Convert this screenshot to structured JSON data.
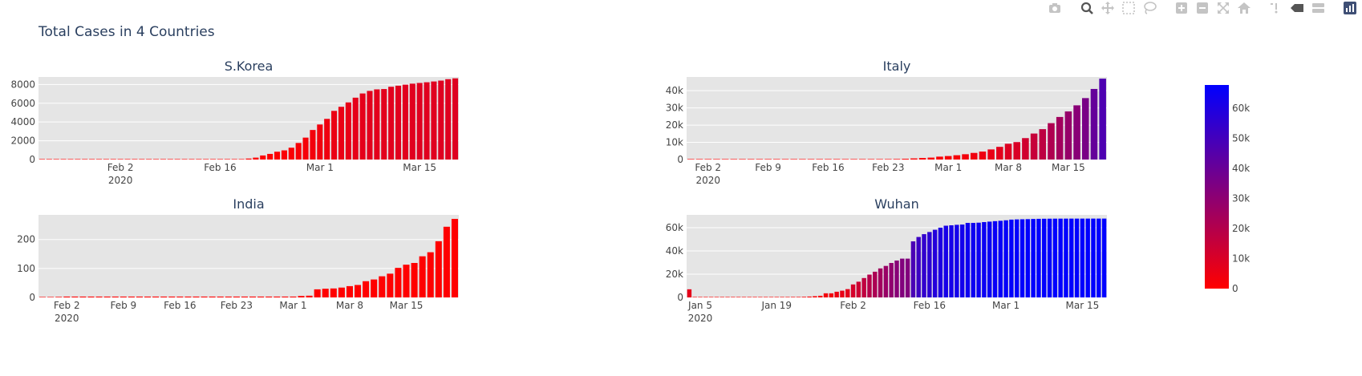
{
  "title": "Total Cases in 4 Countries",
  "modebar": {
    "buttons": [
      {
        "name": "camera-icon",
        "group": 1
      },
      {
        "name": "zoom-icon",
        "group": 2
      },
      {
        "name": "pan-icon",
        "group": 2
      },
      {
        "name": "box-select-icon",
        "group": 2
      },
      {
        "name": "lasso-select-icon",
        "group": 2
      },
      {
        "name": "zoom-in-icon",
        "group": 3
      },
      {
        "name": "zoom-out-icon",
        "group": 3
      },
      {
        "name": "autoscale-icon",
        "group": 3
      },
      {
        "name": "reset-axes-icon",
        "group": 3
      },
      {
        "name": "spike-lines-icon",
        "group": 4
      },
      {
        "name": "hover-closest-icon",
        "group": 4
      },
      {
        "name": "hover-compare-icon",
        "group": 4
      },
      {
        "name": "plotly-logo-icon",
        "group": 5
      }
    ]
  },
  "colors": {
    "plot_bg": "#e5e5e5",
    "grid": "#ffffff",
    "colorscale_low": "#ff0000",
    "colorscale_high": "#0000ff",
    "title_text": "#2a3f5f",
    "tick_text": "#444444"
  },
  "chart_data": {
    "type": "bar",
    "colorscale": {
      "min": 0,
      "max": 67800,
      "low_color": "#ff0000",
      "high_color": "#0000ff",
      "tickvals": [
        0,
        10000,
        20000,
        30000,
        40000,
        50000,
        60000
      ],
      "ticktext": [
        "0",
        "10k",
        "20k",
        "30k",
        "40k",
        "50k",
        "60k"
      ]
    },
    "subplots": [
      {
        "title": "S.Korea",
        "x_start": "2020-01-22",
        "ylim": [
          0,
          8800
        ],
        "yticks": [
          {
            "v": 0,
            "label": "0"
          },
          {
            "v": 2000,
            "label": "2000"
          },
          {
            "v": 4000,
            "label": "4000"
          },
          {
            "v": 6000,
            "label": "6000"
          },
          {
            "v": 8000,
            "label": "8000"
          }
        ],
        "xticks": [
          {
            "date": "2020-02-02",
            "label": "Feb 2",
            "sub": "2020"
          },
          {
            "date": "2020-02-16",
            "label": "Feb 16"
          },
          {
            "date": "2020-03-01",
            "label": "Mar 1"
          },
          {
            "date": "2020-03-15",
            "label": "Mar 15"
          }
        ],
        "values": [
          1,
          1,
          2,
          2,
          3,
          4,
          4,
          4,
          4,
          11,
          12,
          15,
          15,
          16,
          19,
          23,
          24,
          24,
          25,
          27,
          28,
          28,
          28,
          28,
          28,
          29,
          30,
          31,
          31,
          104,
          204,
          433,
          602,
          833,
          977,
          1261,
          1766,
          2337,
          3150,
          3736,
          4335,
          5186,
          5621,
          6088,
          6593,
          7041,
          7314,
          7478,
          7513,
          7755,
          7869,
          7979,
          8086,
          8162,
          8236,
          8320,
          8413,
          8565,
          8652
        ]
      },
      {
        "title": "Italy",
        "x_start": "2020-01-31",
        "ylim": [
          0,
          48000
        ],
        "yticks": [
          {
            "v": 0,
            "label": "0"
          },
          {
            "v": 10000,
            "label": "10k"
          },
          {
            "v": 20000,
            "label": "20k"
          },
          {
            "v": 30000,
            "label": "30k"
          },
          {
            "v": 40000,
            "label": "40k"
          }
        ],
        "xticks": [
          {
            "date": "2020-02-02",
            "label": "Feb 2",
            "sub": "2020"
          },
          {
            "date": "2020-02-09",
            "label": "Feb 9"
          },
          {
            "date": "2020-02-16",
            "label": "Feb 16"
          },
          {
            "date": "2020-02-23",
            "label": "Feb 23"
          },
          {
            "date": "2020-03-01",
            "label": "Mar 1"
          },
          {
            "date": "2020-03-08",
            "label": "Mar 8"
          },
          {
            "date": "2020-03-15",
            "label": "Mar 15"
          }
        ],
        "values": [
          2,
          2,
          2,
          2,
          2,
          2,
          2,
          3,
          3,
          3,
          3,
          3,
          3,
          3,
          3,
          3,
          3,
          3,
          3,
          3,
          20,
          62,
          155,
          229,
          322,
          453,
          655,
          888,
          1128,
          1694,
          2036,
          2502,
          3089,
          3858,
          4636,
          5883,
          7375,
          9172,
          10149,
          12462,
          15113,
          17660,
          21157,
          24747,
          27980,
          31506,
          35713,
          41035,
          47021
        ]
      },
      {
        "title": "India",
        "x_start": "2020-01-30",
        "ylim": [
          0,
          285
        ],
        "yticks": [
          {
            "v": 0,
            "label": "0"
          },
          {
            "v": 100,
            "label": "100"
          },
          {
            "v": 200,
            "label": "200"
          }
        ],
        "xticks": [
          {
            "date": "2020-02-02",
            "label": "Feb 2",
            "sub": "2020"
          },
          {
            "date": "2020-02-09",
            "label": "Feb 9"
          },
          {
            "date": "2020-02-16",
            "label": "Feb 16"
          },
          {
            "date": "2020-02-23",
            "label": "Feb 23"
          },
          {
            "date": "2020-03-01",
            "label": "Mar 1"
          },
          {
            "date": "2020-03-08",
            "label": "Mar 8"
          },
          {
            "date": "2020-03-15",
            "label": "Mar 15"
          }
        ],
        "values": [
          1,
          1,
          2,
          3,
          3,
          3,
          3,
          3,
          3,
          3,
          3,
          3,
          3,
          3,
          3,
          3,
          3,
          3,
          3,
          3,
          3,
          3,
          3,
          3,
          3,
          3,
          3,
          3,
          3,
          3,
          3,
          3,
          5,
          6,
          28,
          30,
          31,
          34,
          39,
          43,
          56,
          62,
          73,
          82,
          102,
          113,
          119,
          142,
          156,
          194,
          244,
          271
        ]
      },
      {
        "title": "Wuhan",
        "x_start": "2020-01-03",
        "ylim": [
          0,
          71000
        ],
        "yticks": [
          {
            "v": 0,
            "label": "0"
          },
          {
            "v": 20000,
            "label": "20k"
          },
          {
            "v": 40000,
            "label": "40k"
          },
          {
            "v": 60000,
            "label": "60k"
          }
        ],
        "xticks": [
          {
            "date": "2020-01-05",
            "label": "Jan 5",
            "sub": "2020"
          },
          {
            "date": "2020-01-19",
            "label": "Jan 19"
          },
          {
            "date": "2020-02-02",
            "label": "Feb 2"
          },
          {
            "date": "2020-02-16",
            "label": "Feb 16"
          },
          {
            "date": "2020-03-01",
            "label": "Mar 1"
          },
          {
            "date": "2020-03-15",
            "label": "Mar 15"
          }
        ],
        "values": [
          7000,
          0,
          0,
          0,
          0,
          0,
          0,
          0,
          0,
          0,
          0,
          0,
          0,
          0,
          0,
          0,
          0,
          0,
          0,
          444,
          444,
          549,
          761,
          1058,
          1423,
          3554,
          3554,
          4903,
          5806,
          7153,
          11177,
          13522,
          16678,
          19665,
          22112,
          24953,
          27100,
          29631,
          31728,
          33366,
          33366,
          48206,
          51986,
          54406,
          56249,
          58182,
          59989,
          61682,
          62031,
          62442,
          62662,
          64084,
          64084,
          64287,
          64786,
          65187,
          65596,
          65914,
          66337,
          66907,
          67103,
          67217,
          67332,
          67466,
          67592,
          67666,
          67707,
          67743,
          67760,
          67773,
          67781,
          67786,
          67790,
          67794,
          67798,
          67799,
          67800
        ]
      }
    ]
  }
}
